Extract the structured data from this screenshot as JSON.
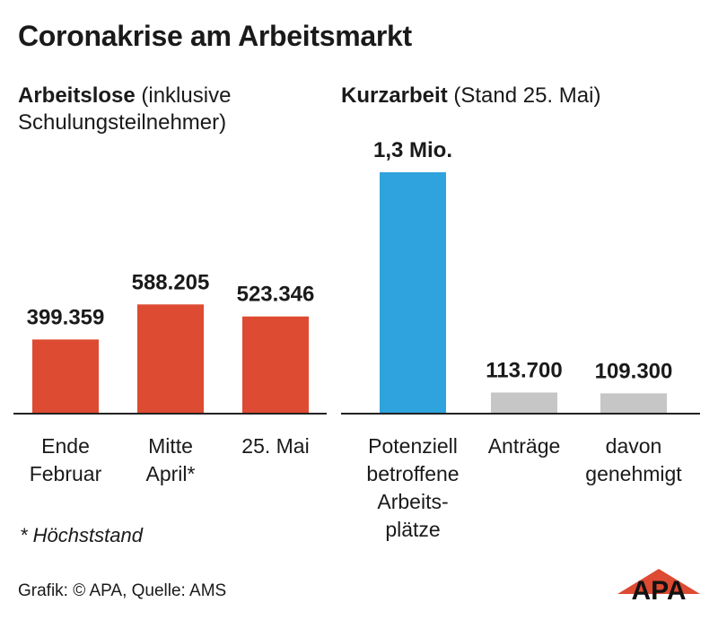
{
  "title": "Coronakrise am Arbeitsmarkt",
  "left_heading": {
    "bold": "Arbeitslose",
    "rest": " (inklusive Schulungsteilnehmer)"
  },
  "right_heading": {
    "bold": "Kurzarbeit",
    "rest": " (Stand 25. Mai)"
  },
  "footnote": "* Höchststand",
  "source": "Grafik: © APA, Quelle: AMS",
  "logo_text": "APA",
  "colors": {
    "red": "#dd4b32",
    "blue": "#2ea3dd",
    "gray": "#c6c6c6",
    "axis": "#222222"
  },
  "chart_data": [
    {
      "type": "bar",
      "title": "Arbeitslose (inklusive Schulungsteilnehmer)",
      "categories": [
        "Ende Februar",
        "Mitte April*",
        "25. Mai"
      ],
      "category_lines": [
        [
          "Ende",
          "Februar"
        ],
        [
          "Mitte",
          "April*"
        ],
        [
          "25. Mai"
        ]
      ],
      "values": [
        399359,
        588205,
        523346
      ],
      "value_labels": [
        "399.359",
        "588.205",
        "523.346"
      ],
      "color": "#dd4b32",
      "ylim": [
        0,
        1300000
      ],
      "grid": false
    },
    {
      "type": "bar",
      "title": "Kurzarbeit (Stand 25. Mai)",
      "categories": [
        "Potenziell betroffene Arbeits-plätze",
        "Anträge",
        "davon genehmigt"
      ],
      "category_lines": [
        [
          "Potenziell",
          "betroffene",
          "Arbeits-",
          "plätze"
        ],
        [
          "Anträge"
        ],
        [
          "davon",
          "genehmigt"
        ]
      ],
      "values": [
        1300000,
        113700,
        109300
      ],
      "value_labels": [
        "1,3 Mio.",
        "113.700",
        "109.300"
      ],
      "colors": [
        "#2ea3dd",
        "#c6c6c6",
        "#c6c6c6"
      ],
      "ylim": [
        0,
        1300000
      ],
      "grid": false
    }
  ]
}
